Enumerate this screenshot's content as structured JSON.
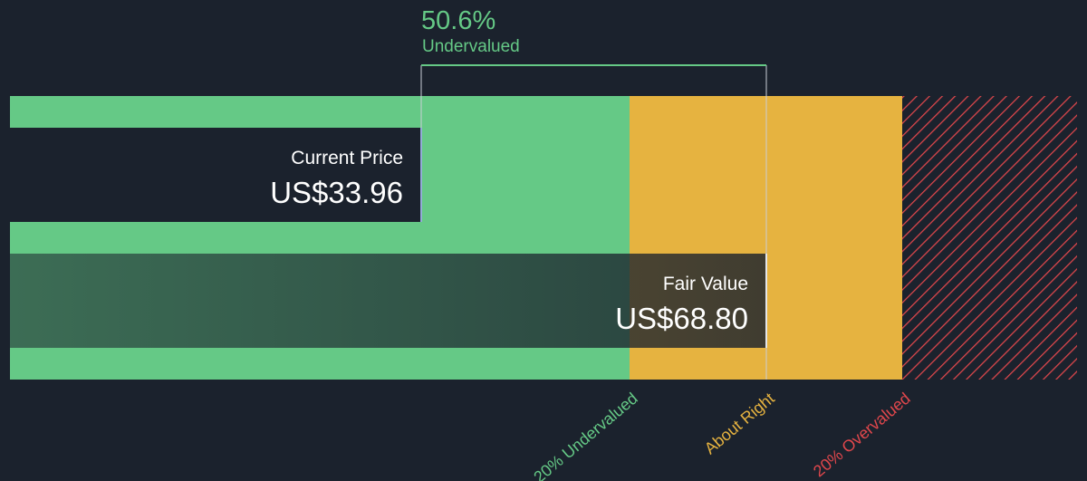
{
  "discount": {
    "value": "50.6%",
    "label": "Undervalued"
  },
  "current_price": {
    "label": "Current Price",
    "value": "US$33.96"
  },
  "fair_value": {
    "label": "Fair Value",
    "value": "US$68.80"
  },
  "zones": [
    "20% Undervalued",
    "About Right",
    "20% Overvalued"
  ]
}
